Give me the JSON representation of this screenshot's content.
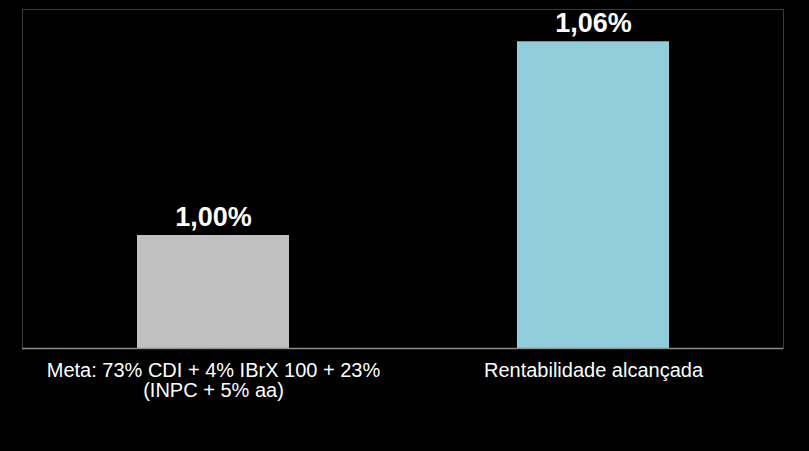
{
  "chart_data": {
    "type": "bar",
    "categories": [
      "Meta: 73% CDI + 4% IBrX 100 + 23% (INPC + 5% aa)",
      "Rentabilidade alcançada"
    ],
    "values": [
      1.0,
      1.06
    ],
    "value_labels": [
      "1,00%",
      "1,06%"
    ],
    "colors": [
      "#c0c0c0",
      "#92cddc"
    ],
    "ylim": [
      0.965,
      1.07
    ],
    "data_labels": true,
    "tick_labels": "x",
    "grid": false
  }
}
